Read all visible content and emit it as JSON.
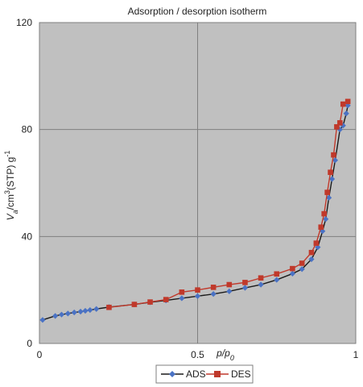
{
  "chart_data": {
    "type": "line",
    "title": "Adsorption / desorption isotherm",
    "xlabel": {
      "main": "p/p",
      "sub": "0"
    },
    "ylabel": {
      "main": "V",
      "sub": "a",
      "rest": "/cm",
      "sup1": "3",
      "rest2": "(STP) g",
      "sup2": "-1"
    },
    "xlim": [
      0,
      1
    ],
    "ylim": [
      0,
      120
    ],
    "x_ticks": [
      0,
      0.5,
      1
    ],
    "y_ticks": [
      0,
      40,
      80,
      120
    ],
    "grid": true,
    "legend_position": "bottom",
    "series": [
      {
        "name": "ADS",
        "color": "#4a72c4",
        "marker": "diamond",
        "line_color": "#1a1a1a",
        "points": [
          [
            0.01,
            8.8
          ],
          [
            0.05,
            10.3
          ],
          [
            0.07,
            10.8
          ],
          [
            0.09,
            11.2
          ],
          [
            0.11,
            11.6
          ],
          [
            0.13,
            11.9
          ],
          [
            0.145,
            12.2
          ],
          [
            0.16,
            12.5
          ],
          [
            0.18,
            12.9
          ],
          [
            0.22,
            13.6
          ],
          [
            0.3,
            14.6
          ],
          [
            0.35,
            15.4
          ],
          [
            0.4,
            16.1
          ],
          [
            0.45,
            16.9
          ],
          [
            0.5,
            17.7
          ],
          [
            0.55,
            18.5
          ],
          [
            0.6,
            19.5
          ],
          [
            0.65,
            20.8
          ],
          [
            0.7,
            22.0
          ],
          [
            0.75,
            23.8
          ],
          [
            0.8,
            26.1
          ],
          [
            0.83,
            27.8
          ],
          [
            0.86,
            31.5
          ],
          [
            0.88,
            36.0
          ],
          [
            0.895,
            42.0
          ],
          [
            0.905,
            46.5
          ],
          [
            0.915,
            54.5
          ],
          [
            0.925,
            61.5
          ],
          [
            0.935,
            68.5
          ],
          [
            0.95,
            80.0
          ],
          [
            0.96,
            81.5
          ],
          [
            0.97,
            86.0
          ],
          [
            0.975,
            89.0
          ]
        ]
      },
      {
        "name": "DES",
        "color": "#c0392b",
        "marker": "square",
        "line_color": "#c0392b",
        "points": [
          [
            0.975,
            90.5
          ],
          [
            0.96,
            89.5
          ],
          [
            0.95,
            82.5
          ],
          [
            0.94,
            81.0
          ],
          [
            0.93,
            70.5
          ],
          [
            0.92,
            64.0
          ],
          [
            0.91,
            56.5
          ],
          [
            0.9,
            48.5
          ],
          [
            0.89,
            43.5
          ],
          [
            0.875,
            37.5
          ],
          [
            0.86,
            34.0
          ],
          [
            0.83,
            30.0
          ],
          [
            0.8,
            28.0
          ],
          [
            0.75,
            26.0
          ],
          [
            0.7,
            24.5
          ],
          [
            0.65,
            22.8
          ],
          [
            0.6,
            22.0
          ],
          [
            0.55,
            21.0
          ],
          [
            0.5,
            20.0
          ],
          [
            0.45,
            19.2
          ],
          [
            0.4,
            16.4
          ],
          [
            0.35,
            15.5
          ],
          [
            0.3,
            14.6
          ],
          [
            0.22,
            13.5
          ]
        ]
      }
    ]
  }
}
